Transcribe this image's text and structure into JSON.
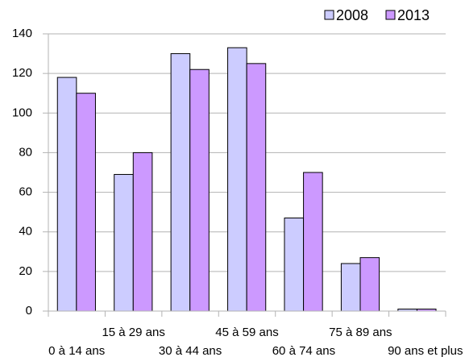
{
  "chart_data": {
    "type": "bar",
    "categories": [
      "0 à 14 ans",
      "15 à 29 ans",
      "30 à 44 ans",
      "45 à 59 ans",
      "60 à 74 ans",
      "75 à 89 ans",
      "90 ans et plus"
    ],
    "series": [
      {
        "name": "2008",
        "color": "#ccccff",
        "values": [
          118,
          69,
          130,
          133,
          47,
          24,
          1
        ]
      },
      {
        "name": "2013",
        "color": "#cc99ff",
        "values": [
          110,
          80,
          122,
          125,
          70,
          27,
          1
        ]
      }
    ],
    "ylim": [
      0,
      140
    ],
    "yticks": [
      0,
      20,
      40,
      60,
      80,
      100,
      120,
      140
    ],
    "grid": true,
    "legend": "top-right"
  }
}
